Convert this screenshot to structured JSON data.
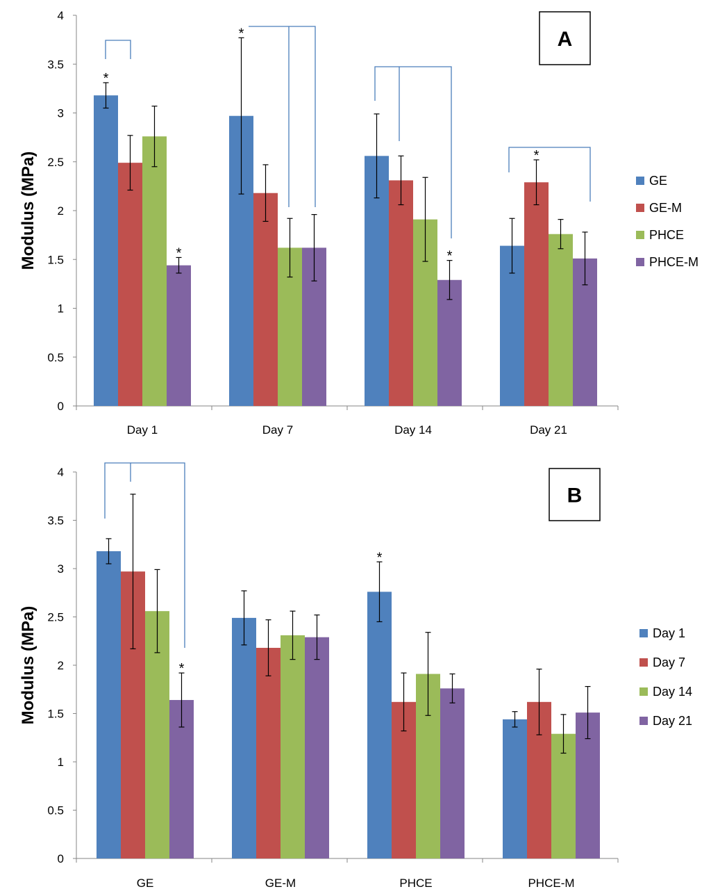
{
  "chart_data": [
    {
      "type": "bar",
      "panel_label": "A",
      "ylabel": "Modulus (MPa)",
      "xlabel": "",
      "ylim": [
        0,
        4
      ],
      "yticks": [
        "0",
        "0.5",
        "1",
        "1.5",
        "2",
        "2.5",
        "3",
        "3.5",
        "4"
      ],
      "categories": [
        "Day 1",
        "Day 7",
        "Day 14",
        "Day 21"
      ],
      "legend_position": "right",
      "series": [
        {
          "name": "GE",
          "color": "#4F81BD",
          "values": [
            3.18,
            2.97,
            2.56,
            1.64
          ],
          "errors": [
            0.13,
            0.8,
            0.43,
            0.28
          ]
        },
        {
          "name": "GE-M",
          "color": "#C0504D",
          "values": [
            2.49,
            2.18,
            2.31,
            2.29
          ],
          "errors": [
            0.28,
            0.29,
            0.25,
            0.23
          ]
        },
        {
          "name": "PHCE",
          "color": "#9BBB59",
          "values": [
            2.76,
            1.62,
            1.91,
            1.76
          ],
          "errors": [
            0.31,
            0.3,
            0.43,
            0.15
          ]
        },
        {
          "name": "PHCE-M",
          "color": "#8064A2",
          "values": [
            1.44,
            1.62,
            1.29,
            1.51
          ],
          "errors": [
            0.08,
            0.34,
            0.2,
            0.27
          ]
        }
      ],
      "annotations": [
        {
          "text": "*",
          "category": 0,
          "series": 0
        },
        {
          "text": "*",
          "category": 0,
          "series": 3
        },
        {
          "text": "*",
          "category": 1,
          "series": 0
        },
        {
          "text": "*",
          "category": 2,
          "series": 3
        },
        {
          "text": "*",
          "category": 3,
          "series": 1
        }
      ]
    },
    {
      "type": "bar",
      "panel_label": "B",
      "ylabel": "Modulus (MPa)",
      "xlabel": "",
      "ylim": [
        0,
        4
      ],
      "yticks": [
        "0",
        "0.5",
        "1",
        "1.5",
        "2",
        "2.5",
        "3",
        "3.5",
        "4"
      ],
      "categories": [
        "GE",
        "GE-M",
        "PHCE",
        "PHCE-M"
      ],
      "legend_position": "right",
      "series": [
        {
          "name": "Day 1",
          "color": "#4F81BD",
          "values": [
            3.18,
            2.49,
            2.76,
            1.44
          ],
          "errors": [
            0.13,
            0.28,
            0.31,
            0.08
          ]
        },
        {
          "name": "Day 7",
          "color": "#C0504D",
          "values": [
            2.97,
            2.18,
            1.62,
            1.62
          ],
          "errors": [
            0.8,
            0.29,
            0.3,
            0.34
          ]
        },
        {
          "name": "Day 14",
          "color": "#9BBB59",
          "values": [
            2.56,
            2.31,
            1.91,
            1.29
          ],
          "errors": [
            0.43,
            0.25,
            0.43,
            0.2
          ]
        },
        {
          "name": "Day 21",
          "color": "#8064A2",
          "values": [
            1.64,
            2.29,
            1.76,
            1.51
          ],
          "errors": [
            0.28,
            0.23,
            0.15,
            0.27
          ]
        }
      ],
      "annotations": [
        {
          "text": "*",
          "category": 0,
          "series": 3
        },
        {
          "text": "*",
          "category": 2,
          "series": 0
        }
      ]
    }
  ]
}
